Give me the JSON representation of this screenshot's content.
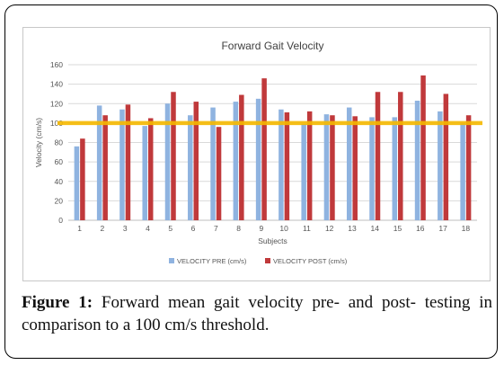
{
  "chart_data": {
    "type": "bar",
    "title": "Forward Gait Velocity",
    "xlabel": "Subjects",
    "ylabel": "Velocity (cm/s)",
    "ylim": [
      0,
      160
    ],
    "yticks": [
      0,
      20,
      40,
      60,
      80,
      100,
      120,
      140,
      160
    ],
    "grid": true,
    "legend_position": "bottom",
    "categories": [
      "1",
      "2",
      "3",
      "4",
      "5",
      "6",
      "7",
      "8",
      "9",
      "10",
      "11",
      "12",
      "13",
      "14",
      "15",
      "16",
      "17",
      "18"
    ],
    "series": [
      {
        "name": "VELOCITY PRE (cm/s)",
        "color": "#8fb3e0",
        "values": [
          76,
          118,
          114,
          97,
          120,
          108,
          116,
          122,
          125,
          114,
          99,
          109,
          116,
          106,
          106,
          123,
          112,
          100
        ]
      },
      {
        "name": "VELOCITY POST (cm/s)",
        "color": "#c0393b",
        "values": [
          84,
          108,
          119,
          105,
          132,
          122,
          96,
          129,
          146,
          111,
          112,
          108,
          107,
          132,
          132,
          149,
          130,
          108
        ]
      }
    ],
    "threshold": {
      "value": 100,
      "color": "#f5b800"
    }
  },
  "caption": {
    "label": "Figure 1:",
    "text": "Forward mean gait velocity pre- and post- testing in comparison to a 100 cm/s threshold."
  }
}
